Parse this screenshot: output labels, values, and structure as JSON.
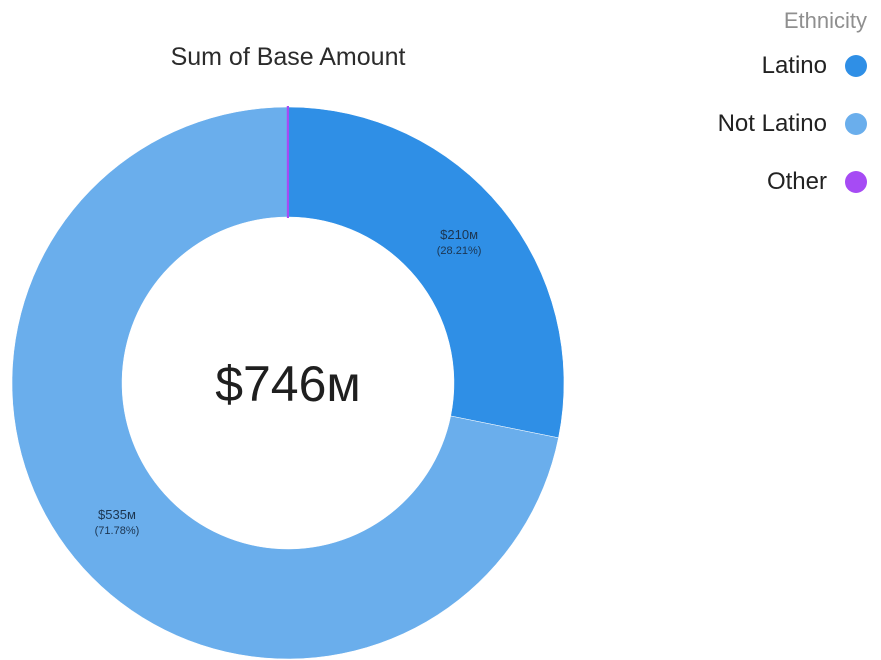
{
  "chart_data": {
    "type": "pie",
    "title": "Sum of Base Amount",
    "center_label": "$746м",
    "legend_title": "Ethnicity",
    "legend_position": "top-right",
    "slices": [
      {
        "name": "Latino",
        "value": 210,
        "value_label": "$210м",
        "percent_label": "(28.21%)",
        "color": "#2f8fe6"
      },
      {
        "name": "Not Latino",
        "value": 535,
        "value_label": "$535м",
        "percent_label": "(71.78%)",
        "color": "#6aaeec"
      },
      {
        "name": "Other",
        "value": 0.1,
        "value_label": "",
        "percent_label": "",
        "color": "#a64bf4"
      }
    ]
  }
}
